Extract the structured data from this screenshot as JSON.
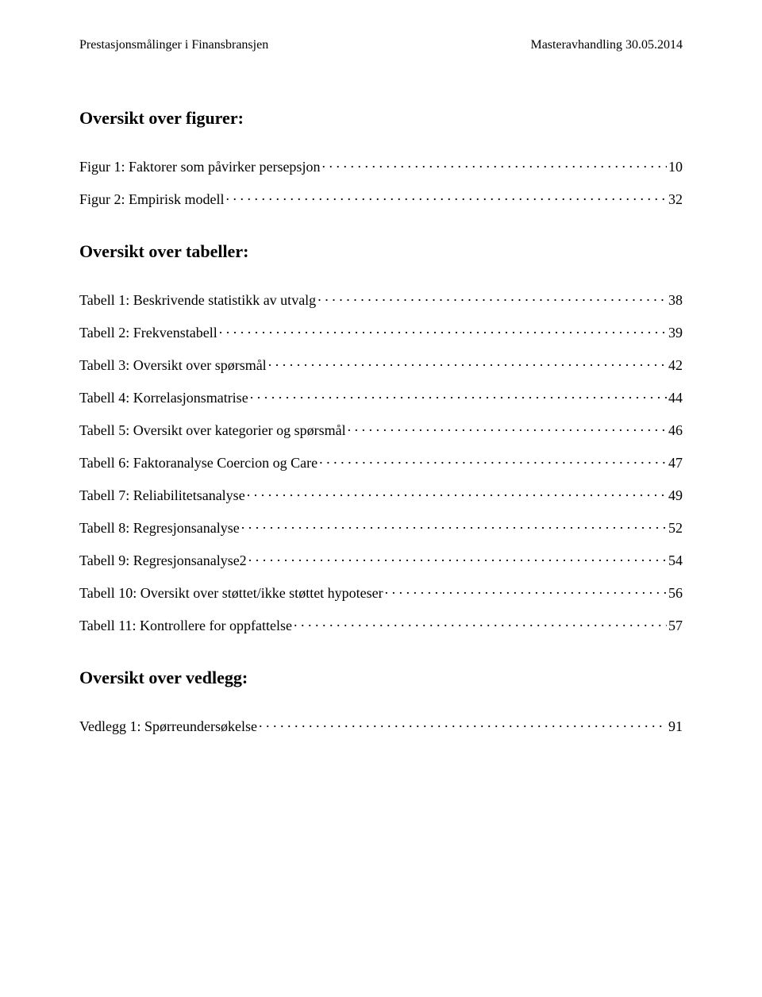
{
  "header": {
    "left": "Prestasjonsmålinger i Finansbransjen",
    "right": "Masteravhandling 30.05.2014"
  },
  "sections": {
    "figures_heading": "Oversikt over figurer:",
    "tables_heading": "Oversikt over tabeller:",
    "attachments_heading": "Oversikt over vedlegg:"
  },
  "figures": [
    {
      "label": "Figur 1: Faktorer som påvirker persepsjon",
      "page": "10"
    },
    {
      "label": "Figur 2: Empirisk modell",
      "page": "32"
    }
  ],
  "tables": [
    {
      "label": "Tabell 1: Beskrivende statistikk av utvalg",
      "page": "38"
    },
    {
      "label": "Tabell 2: Frekvenstabell",
      "page": "39"
    },
    {
      "label": "Tabell 3: Oversikt over spørsmål",
      "page": "42"
    },
    {
      "label": "Tabell 4: Korrelasjonsmatrise",
      "page": "44"
    },
    {
      "label": "Tabell 5: Oversikt over kategorier og spørsmål",
      "page": "46"
    },
    {
      "label": "Tabell 6: Faktoranalyse Coercion og Care",
      "page": "47"
    },
    {
      "label": "Tabell 7: Reliabilitetsanalyse",
      "page": "49"
    },
    {
      "label": "Tabell 8: Regresjonsanalyse",
      "page": "52"
    },
    {
      "label": "Tabell 9: Regresjonsanalyse2",
      "page": "54"
    },
    {
      "label": "Tabell 10: Oversikt over støttet/ikke støttet hypoteser",
      "page": "56"
    },
    {
      "label": "Tabell 11: Kontrollere for oppfattelse",
      "page": "57"
    }
  ],
  "attachments": [
    {
      "label": "Vedlegg 1: Spørreundersøkelse",
      "page": "91"
    }
  ]
}
